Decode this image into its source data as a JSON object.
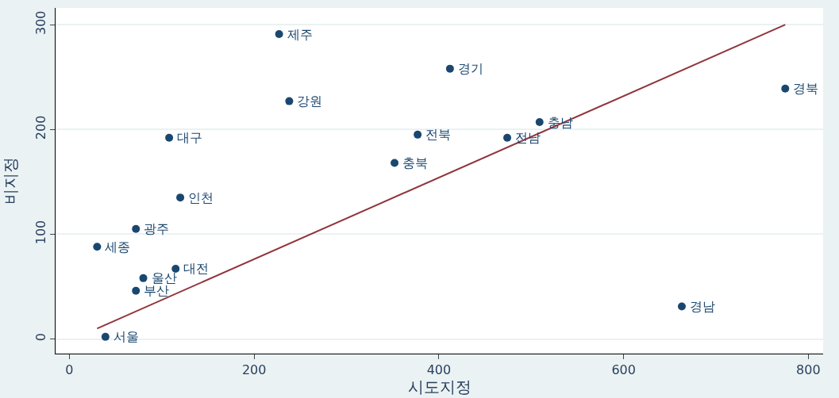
{
  "chart_data": {
    "type": "scatter",
    "xlabel": "시도지정",
    "ylabel": "비지정",
    "xlim": [
      -15,
      816
    ],
    "ylim": [
      -14,
      316
    ],
    "xticks": [
      0,
      200,
      400,
      600,
      800
    ],
    "yticks": [
      0,
      100,
      200,
      300
    ],
    "grid": "y",
    "series": [
      {
        "marker": "circle",
        "color": "#1a476f",
        "x": [
          39,
          72,
          80,
          115,
          30,
          72,
          120,
          108,
          227,
          238,
          352,
          377,
          412,
          474,
          509,
          775,
          663
        ],
        "values": [
          2,
          46,
          58,
          67,
          88,
          105,
          135,
          192,
          291,
          227,
          168,
          195,
          258,
          192,
          207,
          239,
          31
        ]
      },
      {
        "type": "line",
        "marker": "none",
        "color": "#90353b",
        "x": [
          30,
          775
        ],
        "values": [
          10,
          300
        ]
      }
    ],
    "annotations": [
      {
        "text": "서울",
        "x": 39,
        "y": 2
      },
      {
        "text": "부산",
        "x": 72,
        "y": 46
      },
      {
        "text": "울산",
        "x": 80,
        "y": 58
      },
      {
        "text": "대전",
        "x": 115,
        "y": 67
      },
      {
        "text": "세종",
        "x": 30,
        "y": 88
      },
      {
        "text": "광주",
        "x": 72,
        "y": 105
      },
      {
        "text": "인천",
        "x": 120,
        "y": 135
      },
      {
        "text": "대구",
        "x": 108,
        "y": 192
      },
      {
        "text": "제주",
        "x": 227,
        "y": 291
      },
      {
        "text": "강원",
        "x": 238,
        "y": 227
      },
      {
        "text": "충북",
        "x": 352,
        "y": 168
      },
      {
        "text": "전북",
        "x": 377,
        "y": 195
      },
      {
        "text": "경기",
        "x": 412,
        "y": 258
      },
      {
        "text": "전남",
        "x": 474,
        "y": 192
      },
      {
        "text": "충남",
        "x": 509,
        "y": 207
      },
      {
        "text": "경북",
        "x": 775,
        "y": 239
      },
      {
        "text": "경남",
        "x": 663,
        "y": 31
      }
    ]
  }
}
